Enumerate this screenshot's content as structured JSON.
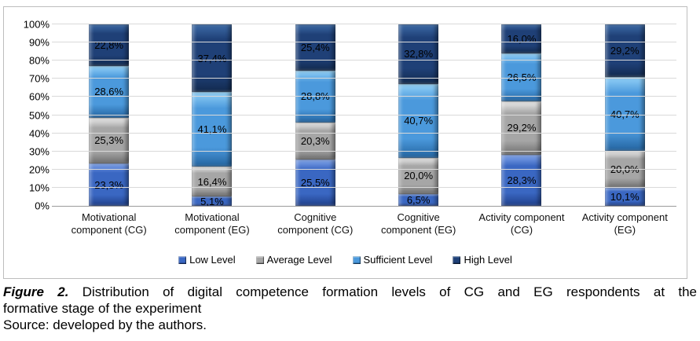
{
  "chart_data": {
    "type": "bar",
    "subtype": "stacked-100-percent",
    "decimal_separator": ",",
    "categories": [
      "Motivational component (CG)",
      "Motivational component (EG)",
      "Cognitive component (CG)",
      "Cognitive component (EG)",
      "Activity component (CG)",
      "Activity component (EG)"
    ],
    "series": [
      {
        "name": "Low Level",
        "color": "#3a67c2",
        "color_light": "#85a8ec",
        "color_dark": "#1f3f8a",
        "values": [
          23.3,
          5.1,
          25.5,
          6.5,
          28.3,
          10.1
        ]
      },
      {
        "name": "Average Level",
        "color": "#a6a6a6",
        "color_light": "#ededed",
        "color_dark": "#6e6e6e",
        "values": [
          25.3,
          16.4,
          20.3,
          20.0,
          29.2,
          20.0
        ]
      },
      {
        "name": "Sufficient Level",
        "color": "#4b99dc",
        "color_light": "#94d2f8",
        "color_dark": "#23639f",
        "values": [
          28.6,
          41.1,
          28.8,
          40.7,
          26.5,
          40.7
        ]
      },
      {
        "name": "High Level",
        "color": "#1f4077",
        "color_light": "#3e6ca8",
        "color_dark": "#122a4e",
        "values": [
          22.8,
          37.4,
          25.4,
          32.8,
          16.0,
          29.2
        ]
      }
    ],
    "y_ticks": [
      "0%",
      "10%",
      "20%",
      "30%",
      "40%",
      "50%",
      "60%",
      "70%",
      "80%",
      "90%",
      "100%"
    ],
    "ylim": [
      0,
      100
    ],
    "grid": true,
    "gridline_color": "#d9d9d9",
    "legend_position": "bottom",
    "title": ""
  },
  "caption": {
    "figure_label": "Figure 2.",
    "line1": "Distribution of digital competence formation levels of CG and EG respondents at the",
    "line2": "formative stage of the experiment",
    "source": "Source: developed by the authors."
  }
}
